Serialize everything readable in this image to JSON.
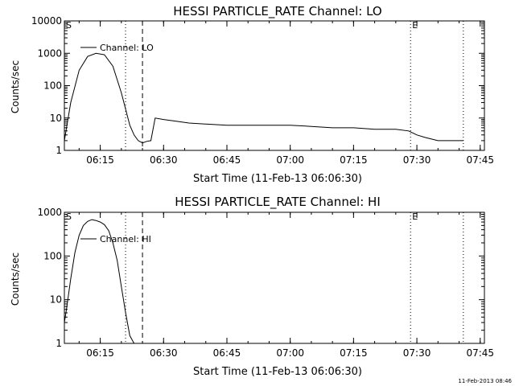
{
  "chart_data": [
    {
      "type": "line",
      "title": "HESSI PARTICLE_RATE Channel: LO",
      "xlabel": "Start Time (11-Feb-13 06:06:30)",
      "ylabel": "Counts/sec",
      "yscale": "log",
      "xlim": [
        "06:06:30",
        "07:46:00"
      ],
      "ylim": [
        1,
        10000
      ],
      "x_ticks": [
        "06:15",
        "06:30",
        "06:45",
        "07:00",
        "07:15",
        "07:30",
        "07:45"
      ],
      "y_ticks": [
        "1",
        "10",
        "100",
        "1000",
        "10000"
      ],
      "legend": {
        "label": "Channel: LO",
        "position": "top-left"
      },
      "markers": [
        {
          "label": "S",
          "time": "06:06:30",
          "style": "dotted"
        },
        {
          "label": "",
          "time": "06:21:00",
          "style": "dotted"
        },
        {
          "label": "",
          "time": "06:25:00",
          "style": "dashed"
        },
        {
          "label": "E",
          "time": "07:28:30",
          "style": "dotted"
        },
        {
          "label": "",
          "time": "07:41:00",
          "style": "dotted"
        }
      ],
      "series": [
        {
          "name": "Channel: LO",
          "x": [
            "06:06:30",
            "06:08:00",
            "06:10:00",
            "06:12:00",
            "06:14:00",
            "06:16:00",
            "06:18:00",
            "06:20:00",
            "06:22:00",
            "06:23:00",
            "06:24:00",
            "06:25:00",
            "06:26:00",
            "06:27:00",
            "06:28:00",
            "06:30:00",
            "06:33:00",
            "06:36:00",
            "06:40:00",
            "06:45:00",
            "06:50:00",
            "06:55:00",
            "07:00:00",
            "07:05:00",
            "07:10:00",
            "07:15:00",
            "07:20:00",
            "07:25:00",
            "07:28:00",
            "07:30:00",
            "07:32:00",
            "07:35:00",
            "07:38:00",
            "07:41:00"
          ],
          "y": [
            2,
            30,
            300,
            800,
            1000,
            900,
            400,
            60,
            6,
            3,
            2,
            1.7,
            1.9,
            2,
            10,
            9,
            8,
            7,
            6.5,
            6,
            6,
            6,
            6,
            5.5,
            5,
            5,
            4.5,
            4.5,
            4,
            3,
            2.5,
            2,
            2,
            2
          ]
        }
      ]
    },
    {
      "type": "line",
      "title": "HESSI PARTICLE_RATE Channel: HI",
      "xlabel": "Start Time (11-Feb-13 06:06:30)",
      "ylabel": "Counts/sec",
      "yscale": "log",
      "xlim": [
        "06:06:30",
        "07:46:00"
      ],
      "ylim": [
        1,
        1000
      ],
      "x_ticks": [
        "06:15",
        "06:30",
        "06:45",
        "07:00",
        "07:15",
        "07:30",
        "07:45"
      ],
      "y_ticks": [
        "1",
        "10",
        "100",
        "1000"
      ],
      "legend": {
        "label": "Channel: HI",
        "position": "top-left"
      },
      "markers": [
        {
          "label": "S",
          "time": "06:06:30",
          "style": "dotted"
        },
        {
          "label": "",
          "time": "06:21:00",
          "style": "dotted"
        },
        {
          "label": "",
          "time": "06:25:00",
          "style": "dashed"
        },
        {
          "label": "E",
          "time": "07:28:30",
          "style": "dotted"
        },
        {
          "label": "",
          "time": "07:41:00",
          "style": "dotted"
        }
      ],
      "series": [
        {
          "name": "Channel: HI",
          "x": [
            "06:06:30",
            "06:07:00",
            "06:08:00",
            "06:09:00",
            "06:10:00",
            "06:11:00",
            "06:12:00",
            "06:13:00",
            "06:14:00",
            "06:15:00",
            "06:16:00",
            "06:17:00",
            "06:18:00",
            "06:19:00",
            "06:20:00",
            "06:21:00",
            "06:22:00",
            "06:23:00"
          ],
          "y": [
            3,
            6,
            30,
            120,
            300,
            500,
            620,
            680,
            650,
            600,
            520,
            380,
            200,
            80,
            20,
            5,
            1.5,
            1
          ]
        }
      ]
    }
  ],
  "timestamp": "11-Feb-2013 08:46"
}
